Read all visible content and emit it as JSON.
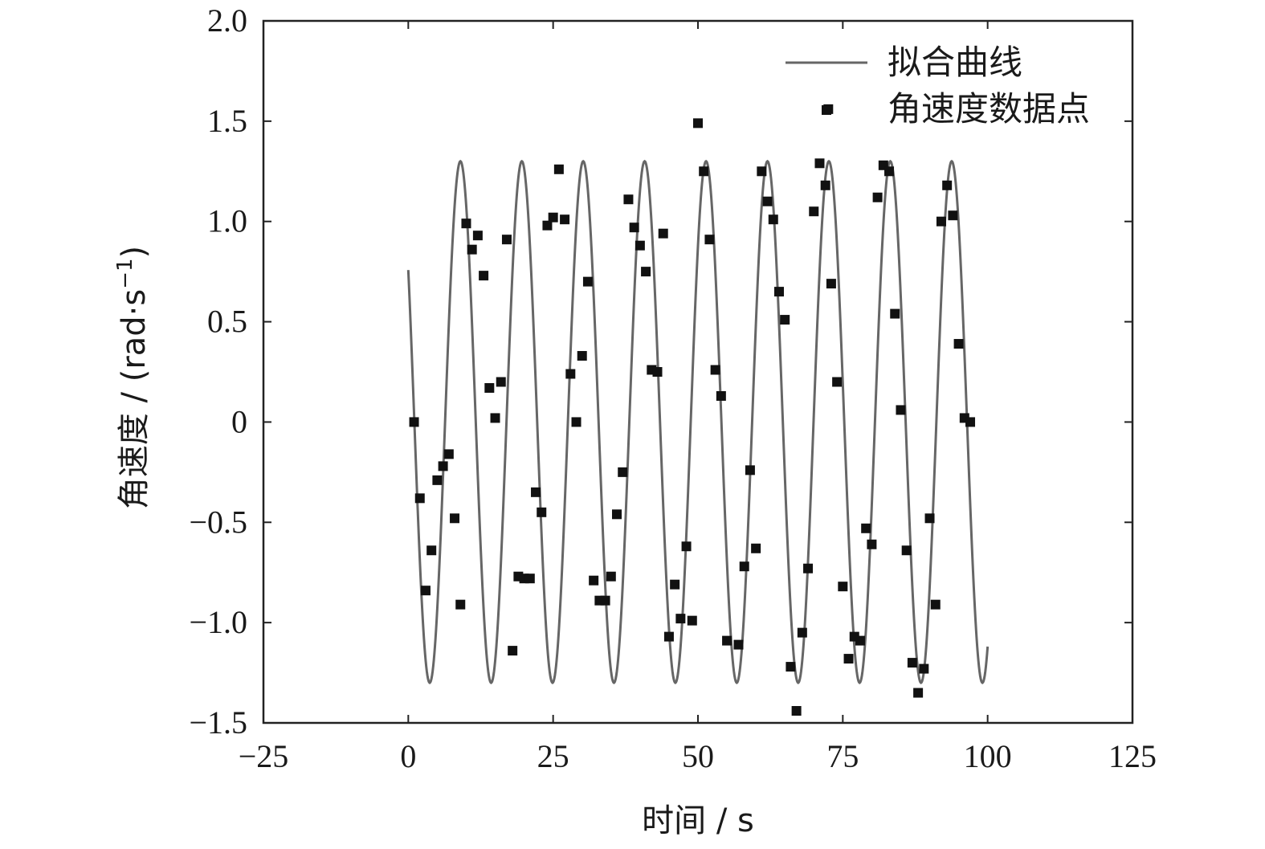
{
  "chart_data": {
    "type": "scatter",
    "title": "",
    "xlabel": "时间 / s",
    "ylabel": "角速度 / (rad·s",
    "ylabel_sup": "−1",
    "ylabel_close": ")",
    "xlim": [
      -25,
      125
    ],
    "ylim": [
      -1.5,
      2.0
    ],
    "x_ticks": [
      -25,
      0,
      25,
      50,
      75,
      100,
      125
    ],
    "x_tick_labels": [
      "−25",
      "0",
      "25",
      "50",
      "75",
      "100",
      "125"
    ],
    "y_ticks": [
      -1.5,
      -1.0,
      -0.5,
      0,
      0.5,
      1.0,
      1.5,
      2.0
    ],
    "y_tick_labels": [
      "−1.5",
      "−1.0",
      "−0.5",
      "0",
      "0.5",
      "1.0",
      "1.5",
      "2.0"
    ],
    "grid": false,
    "legend_position": "top-right",
    "colors": {
      "curve": "#666666",
      "points": "#111111",
      "axes": "#222222"
    },
    "series": [
      {
        "name": "拟合曲线",
        "kind": "line",
        "function": {
          "amplitude": 1.3,
          "period": 10.6,
          "phase_shift": 6.35,
          "x_start": 0,
          "x_end": 100
        }
      },
      {
        "name": "角速度数据点",
        "kind": "scatter",
        "points": [
          [
            1,
            0.0
          ],
          [
            2,
            -0.38
          ],
          [
            3,
            -0.84
          ],
          [
            4,
            -0.64
          ],
          [
            5,
            -0.29
          ],
          [
            6,
            -0.22
          ],
          [
            7,
            -0.16
          ],
          [
            8,
            -0.48
          ],
          [
            9,
            -0.91
          ],
          [
            10,
            0.99
          ],
          [
            11,
            0.86
          ],
          [
            12,
            0.93
          ],
          [
            13,
            0.73
          ],
          [
            14,
            0.17
          ],
          [
            15,
            0.02
          ],
          [
            16,
            0.2
          ],
          [
            17,
            0.91
          ],
          [
            18,
            -1.14
          ],
          [
            19,
            -0.77
          ],
          [
            20,
            -0.78
          ],
          [
            21,
            -0.78
          ],
          [
            22,
            -0.35
          ],
          [
            23,
            -0.45
          ],
          [
            24,
            0.98
          ],
          [
            25,
            1.02
          ],
          [
            26,
            1.26
          ],
          [
            27,
            1.01
          ],
          [
            28,
            0.24
          ],
          [
            29,
            0.0
          ],
          [
            30,
            0.33
          ],
          [
            31,
            0.7
          ],
          [
            32,
            -0.79
          ],
          [
            33,
            -0.89
          ],
          [
            34,
            -0.89
          ],
          [
            35,
            -0.77
          ],
          [
            36,
            -0.46
          ],
          [
            37,
            -0.25
          ],
          [
            38,
            1.11
          ],
          [
            39,
            0.97
          ],
          [
            40,
            0.88
          ],
          [
            41,
            0.75
          ],
          [
            42,
            0.26
          ],
          [
            43,
            0.25
          ],
          [
            44,
            0.94
          ],
          [
            45,
            -1.07
          ],
          [
            46,
            -0.81
          ],
          [
            47,
            -0.98
          ],
          [
            48,
            -0.62
          ],
          [
            49,
            -0.99
          ],
          [
            50,
            1.49
          ],
          [
            51,
            1.25
          ],
          [
            52,
            0.91
          ],
          [
            53,
            0.26
          ],
          [
            54,
            0.13
          ],
          [
            55,
            -1.09
          ],
          [
            57,
            -1.11
          ],
          [
            58,
            -0.72
          ],
          [
            59,
            -0.24
          ],
          [
            60,
            -0.63
          ],
          [
            61,
            1.25
          ],
          [
            62,
            1.1
          ],
          [
            63,
            1.01
          ],
          [
            64,
            0.65
          ],
          [
            65,
            0.51
          ],
          [
            66,
            -1.22
          ],
          [
            67,
            -1.44
          ],
          [
            68,
            -1.05
          ],
          [
            69,
            -0.73
          ],
          [
            70,
            1.05
          ],
          [
            71,
            1.29
          ],
          [
            72,
            1.18
          ],
          [
            72.5,
            1.56
          ],
          [
            73,
            0.69
          ],
          [
            74,
            0.2
          ],
          [
            75,
            -0.82
          ],
          [
            76,
            -1.18
          ],
          [
            77,
            -1.07
          ],
          [
            78,
            -1.09
          ],
          [
            79,
            -0.53
          ],
          [
            80,
            -0.61
          ],
          [
            81,
            1.12
          ],
          [
            82,
            1.28
          ],
          [
            83,
            1.25
          ],
          [
            84,
            0.54
          ],
          [
            85,
            0.06
          ],
          [
            86,
            -0.64
          ],
          [
            87,
            -1.2
          ],
          [
            88,
            -1.35
          ],
          [
            89,
            -1.23
          ],
          [
            90,
            -0.48
          ],
          [
            91,
            -0.91
          ],
          [
            92,
            1.0
          ],
          [
            93,
            1.18
          ],
          [
            94,
            1.03
          ],
          [
            95,
            0.39
          ],
          [
            96,
            0.02
          ],
          [
            97,
            0.0
          ]
        ]
      }
    ]
  }
}
